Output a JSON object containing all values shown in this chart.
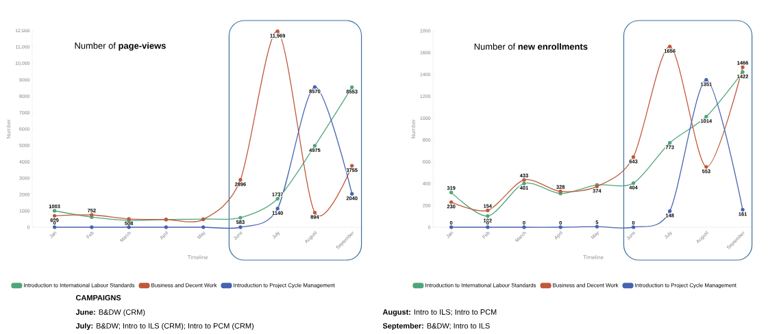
{
  "chart_data": [
    {
      "type": "line",
      "title": "Number of **page-views**",
      "xlabel": "Timeline",
      "ylabel": "Number",
      "categories": [
        "Jan",
        "Feb",
        "March",
        "April",
        "May",
        "June",
        "July",
        "August",
        "September"
      ],
      "ylim": [
        0,
        12000
      ],
      "yticks": [
        0,
        1000,
        2000,
        3000,
        4000,
        5000,
        6000,
        7000,
        8000,
        9000,
        {
          "value": 10000,
          "label": "10,000"
        },
        {
          "value": 11000,
          "label": "11,000"
        },
        {
          "value": 12000,
          "label": "12,000"
        }
      ],
      "series": [
        {
          "name": "Introduction to International Labour Standards",
          "color": "#4fa67a",
          "values": [
            1003,
            620,
            420,
            470,
            500,
            583,
            1737,
            4975,
            8553
          ],
          "value_labels": [
            "1003",
            null,
            null,
            null,
            null,
            "583",
            "1737",
            "4975",
            "8553"
          ]
        },
        {
          "name": "Business and Decent Work",
          "color": "#c0593a",
          "values": [
            699,
            752,
            508,
            470,
            478,
            2896,
            11969,
            894,
            3755
          ],
          "value_labels": [
            "699",
            "752",
            "508",
            null,
            null,
            "2896",
            "11,969",
            "894",
            "3755"
          ]
        },
        {
          "name": "Introduction to Project Cycle Management",
          "color": "#4563b0",
          "values": [
            0,
            0,
            0,
            0,
            0,
            0,
            1140,
            8570,
            2040
          ],
          "value_labels": [
            "0",
            null,
            null,
            null,
            null,
            null,
            "1140",
            "8570",
            "2040"
          ]
        }
      ],
      "marker": "circle",
      "line_style": "solid",
      "legend": "bottom",
      "annotations": [
        "CAMPAIGNS",
        "**June:** B&DW (CRM)",
        "**July:** B&DW; Intro to ILS (CRM); Intro to PCM (CRM)",
        "**August:** Intro to ILS; Intro to PCM",
        "**September:** B&DW; Intro to ILS"
      ]
    },
    {
      "type": "line",
      "title": "Number of **new enrollments**",
      "xlabel": "Timeline",
      "ylabel": "Number",
      "categories": [
        "Jan",
        "Feb",
        "March",
        "April",
        "May",
        "June",
        "July",
        "August",
        "September"
      ],
      "ylim": [
        0,
        1800
      ],
      "yticks": [
        0,
        200,
        400,
        600,
        800,
        1000,
        1200,
        1400,
        1600,
        1800
      ],
      "series": [
        {
          "name": "Introduction to International Labour Standards",
          "color": "#4fa67a",
          "values": [
            319,
            102,
            401,
            309,
            388,
            404,
            773,
            1014,
            1422
          ],
          "value_labels": [
            "319",
            "102",
            "401",
            null,
            null,
            "404",
            "773",
            "1014",
            "1422"
          ]
        },
        {
          "name": "Business and Decent Work",
          "color": "#c0593a",
          "values": [
            230,
            154,
            433,
            328,
            374,
            643,
            1656,
            553,
            1466
          ],
          "value_labels": [
            "230",
            "154",
            "433",
            "328",
            "374",
            "643",
            "1656",
            "553",
            "1466"
          ]
        },
        {
          "name": "Introduction to Project Cycle Management",
          "color": "#4563b0",
          "values": [
            0,
            0,
            0,
            0,
            5,
            0,
            148,
            1351,
            161
          ],
          "value_labels": [
            "0",
            "0",
            "0",
            "0",
            "5",
            "0",
            "148",
            "1351",
            "161"
          ]
        }
      ],
      "marker": "circle",
      "line_style": "solid",
      "legend": "bottom"
    }
  ]
}
